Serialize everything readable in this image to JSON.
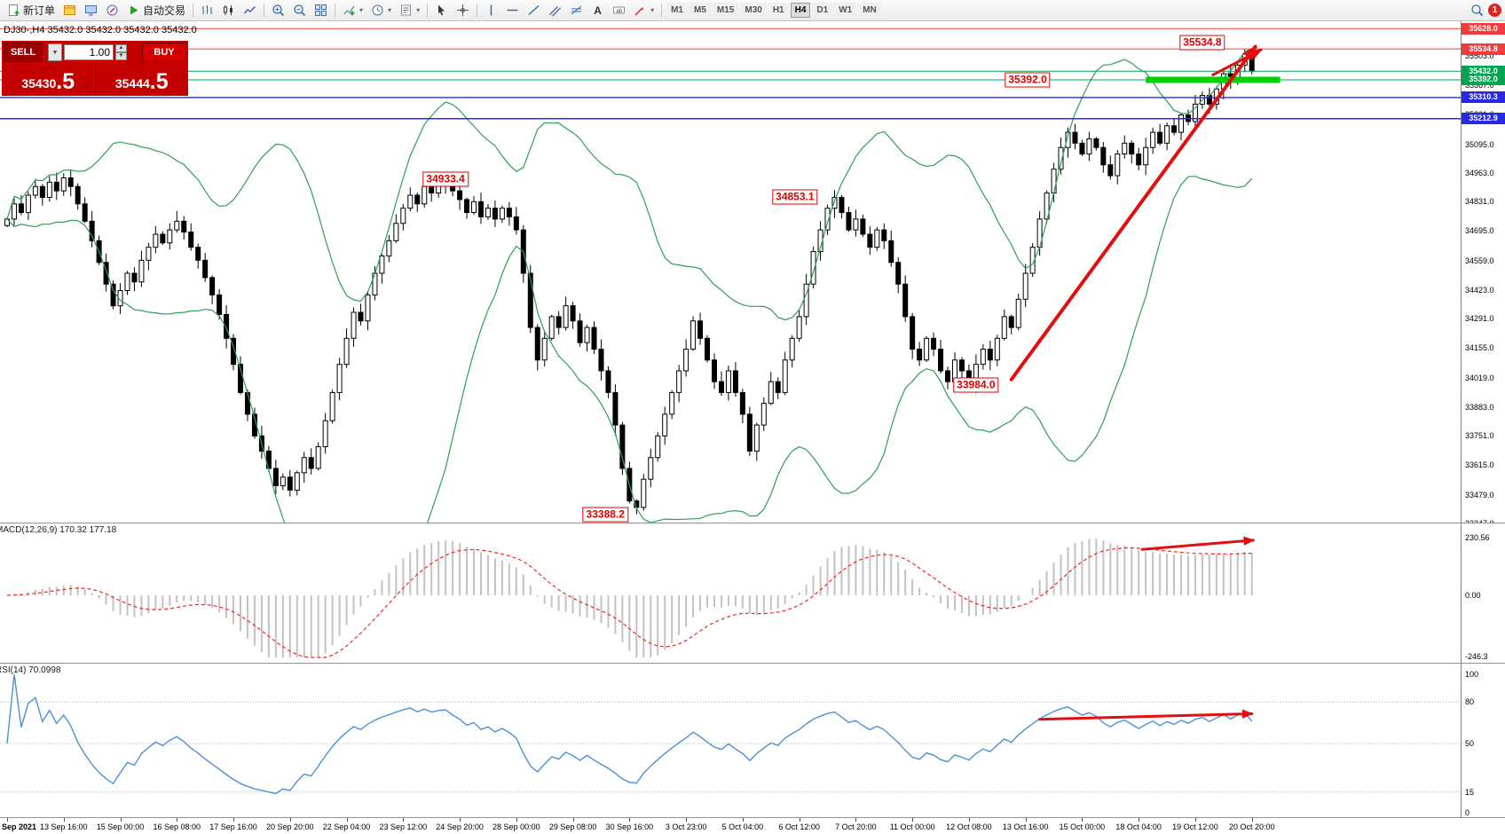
{
  "toolbar": {
    "new_order_label": "新订单",
    "auto_trading_label": "自动交易",
    "timeframes": [
      "M1",
      "M5",
      "M15",
      "M30",
      "H1",
      "H4",
      "D1",
      "W1",
      "MN"
    ],
    "active_timeframe": "H4",
    "notification_count": "1"
  },
  "chart": {
    "symbol_info": "DJ30-,H4  35432.0 35432.0 35432.0 35432.0",
    "trade_panel": {
      "sell_label": "SELL",
      "buy_label": "BUY",
      "volume": "1.00",
      "sell_price": "35430",
      "sell_frac": ".5",
      "buy_price": "35444",
      "buy_frac": ".5"
    }
  },
  "panels": {
    "macd_label": "MACD(12,26,9) 170.32 177.18",
    "macd_axis": [
      "230.56",
      "0.00",
      "-246.3"
    ],
    "rsi_label": "RSI(14) 70.0998",
    "rsi_axis": [
      "100",
      "80",
      "50",
      "15",
      "0"
    ],
    "rsi_levels": [
      80,
      50,
      15
    ]
  },
  "chart_data": {
    "type": "candlestick",
    "symbol": "DJ30-",
    "timeframe": "H4",
    "closes": [
      34750,
      34820,
      34780,
      34860,
      34900,
      34850,
      34920,
      34880,
      34940,
      34900,
      34820,
      34740,
      34650,
      34550,
      34450,
      34350,
      34420,
      34500,
      34460,
      34560,
      34620,
      34680,
      34640,
      34700,
      34740,
      34690,
      34620,
      34560,
      34480,
      34400,
      34310,
      34200,
      34080,
      33950,
      33850,
      33750,
      33680,
      33600,
      33520,
      33560,
      33500,
      33580,
      33650,
      33600,
      33700,
      33820,
      33950,
      34080,
      34200,
      34320,
      34280,
      34400,
      34500,
      34580,
      34650,
      34730,
      34800,
      34860,
      34820,
      34900,
      34870,
      34910,
      34930,
      34880,
      34840,
      34780,
      34830,
      34760,
      34800,
      34750,
      34800,
      34760,
      34700,
      34500,
      34250,
      34100,
      34200,
      34300,
      34250,
      34350,
      34280,
      34180,
      34250,
      34150,
      34050,
      33950,
      33800,
      33600,
      33450,
      33420,
      33550,
      33650,
      33750,
      33850,
      33950,
      34050,
      34150,
      34280,
      34200,
      34100,
      34000,
      33950,
      34050,
      33950,
      33850,
      33680,
      33800,
      33900,
      34000,
      33950,
      34100,
      34200,
      34300,
      34450,
      34600,
      34700,
      34800,
      34850,
      34780,
      34700,
      34750,
      34680,
      34620,
      34700,
      34650,
      34550,
      34450,
      34300,
      34150,
      34100,
      34200,
      34150,
      34050,
      34000,
      34100,
      34050,
      33990,
      34080,
      34150,
      34100,
      34200,
      34300,
      34250,
      34380,
      34500,
      34620,
      34750,
      34870,
      34980,
      35080,
      35150,
      35100,
      35050,
      35120,
      35080,
      35000,
      34950,
      35050,
      35100,
      35050,
      35000,
      35080,
      35150,
      35100,
      35180,
      35150,
      35230,
      35200,
      35280,
      35320,
      35280,
      35350,
      35420,
      35380,
      35460,
      35510,
      35432
    ],
    "overrides": [
      {
        "i": 175,
        "high": 35534.8
      },
      {
        "i": 89,
        "low": 33388.2
      },
      {
        "i": 40,
        "low": 33471.0
      },
      {
        "i": 136,
        "low": 33984.0
      }
    ],
    "indicators": {
      "bollinger": {
        "period": 20,
        "deviation": 2
      },
      "macd": {
        "fast": 12,
        "slow": 26,
        "signal": 9
      },
      "rsi": {
        "period": 14
      }
    },
    "price_axis_ticks": [
      "35503.0",
      "35367.0",
      "35231.0",
      "35095.0",
      "34963.0",
      "34831.0",
      "34695.0",
      "34559.0",
      "34423.0",
      "34291.0",
      "34155.0",
      "34019.0",
      "33883.0",
      "33751.0",
      "33615.0",
      "33479.0",
      "33347.0"
    ],
    "time_labels": [
      "Sep 2021",
      "13 Sep 16:00",
      "15 Sep 00:00",
      "16 Sep 08:00",
      "17 Sep 16:00",
      "20 Sep 20:00",
      "22 Sep 04:00",
      "23 Sep 12:00",
      "24 Sep 20:00",
      "28 Sep 00:00",
      "29 Sep 08:00",
      "30 Sep 16:00",
      "3 Oct 23:00",
      "5 Oct 04:00",
      "6 Oct 12:00",
      "7 Oct 20:00",
      "11 Oct 00:00",
      "12 Oct 08:00",
      "13 Oct 16:00",
      "15 Oct 00:00",
      "18 Oct 04:00",
      "19 Oct 12:00",
      "20 Oct 20:00"
    ],
    "hlines": [
      {
        "price": 35628.0,
        "color": "#f03c3c",
        "w": 1
      },
      {
        "price": 35534.8,
        "color": "#f03c3c",
        "w": 1
      },
      {
        "price": 35432.0,
        "color": "#00a651",
        "w": 1
      },
      {
        "price": 35392.0,
        "color": "#00a651",
        "w": 1
      },
      {
        "price": 35310.3,
        "color": "#2828e8",
        "w": 1.4
      },
      {
        "price": 35212.9,
        "color": "#2828e8",
        "w": 1.4
      }
    ],
    "thick_line": {
      "price": 35392.0,
      "from_bar": 161,
      "to_bar": 180,
      "color": "#00d200",
      "h": 7
    },
    "badges": [
      {
        "label": "35628.0",
        "price": 35628.0,
        "color": "#f03c3c"
      },
      {
        "label": "35534.8",
        "price": 35534.8,
        "color": "#f03c3c"
      },
      {
        "label": "35432.0",
        "price": 35432.0,
        "color": "#00a651"
      },
      {
        "label": "35392.0",
        "price": 35392.0,
        "color": "#00a651"
      },
      {
        "label": "35310.3",
        "price": 35310.3,
        "color": "#2828e8"
      },
      {
        "label": "35212.9",
        "price": 35212.9,
        "color": "#2828e8"
      }
    ],
    "callouts": [
      {
        "text": "35534.8",
        "bar": 169,
        "price": 35565
      },
      {
        "text": "35392.0",
        "bar": 144.3,
        "price": 35392
      },
      {
        "text": "34933.4",
        "bar": 62,
        "price": 34933
      },
      {
        "text": "34853.1",
        "bar": 111.4,
        "price": 34853
      },
      {
        "text": "33984.0",
        "bar": 137,
        "price": 33984
      },
      {
        "text": "33388.2",
        "bar": 84.6,
        "price": 33388
      }
    ],
    "arrows": {
      "main": {
        "from": [
          142,
          34010
        ],
        "to": [
          176.5,
          35545
        ]
      },
      "secondary": {
        "from": [
          170.5,
          35415
        ],
        "to": [
          177.3,
          35530
        ]
      },
      "macd": {
        "from": [
          160.5,
          185
        ],
        "to": [
          176.2,
          222
        ]
      },
      "rsi": {
        "from": [
          146,
          67.5
        ],
        "to": [
          176,
          71.5
        ]
      }
    }
  }
}
